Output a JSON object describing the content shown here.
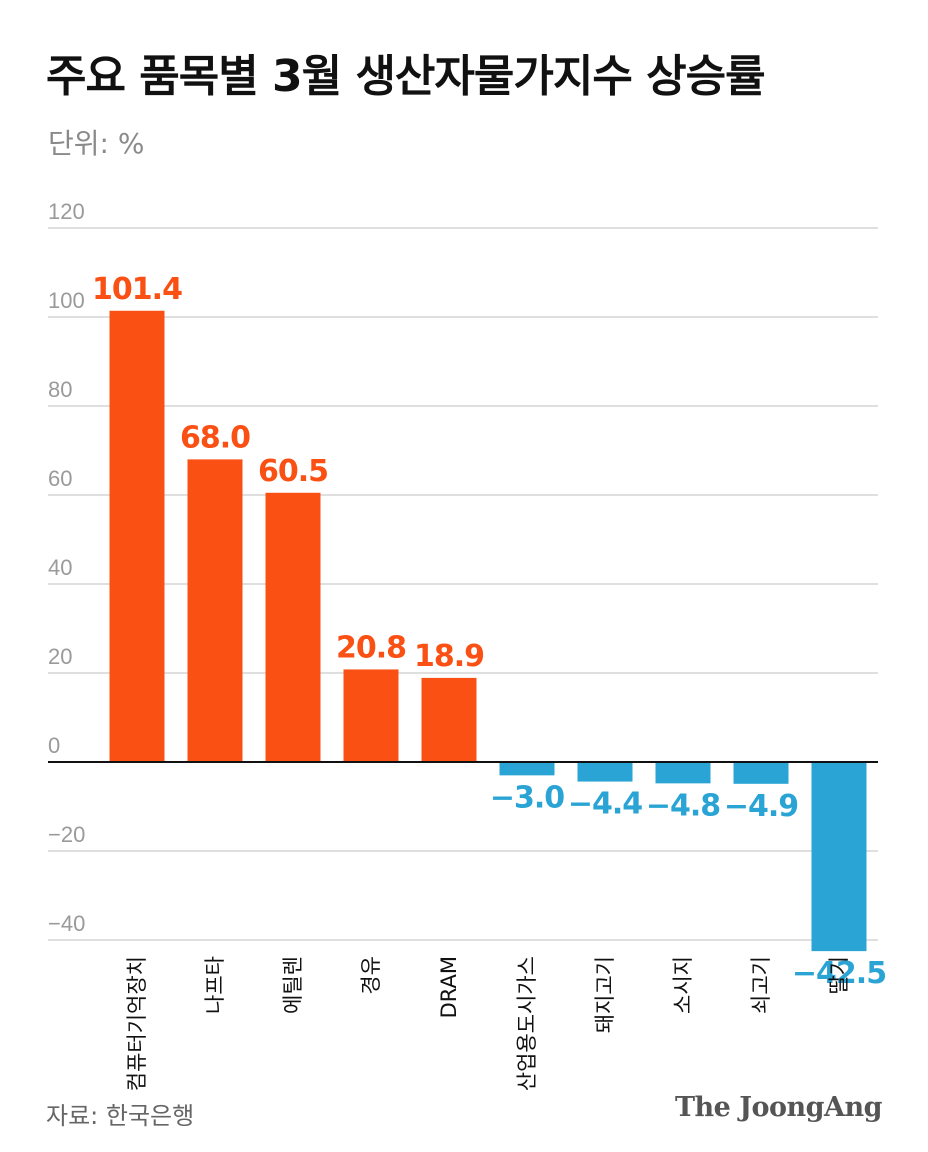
{
  "header": {
    "title": "주요 품목별 3월 생산자물가지수 상승률",
    "unit": "단위: %"
  },
  "footer": {
    "source": "자료: 한국은행",
    "brand": "The JoongAng"
  },
  "colors": {
    "positive": "#fa5014",
    "negative": "#2aa4d5",
    "grid": "#cccccc",
    "zero_line": "#111111"
  },
  "chart_data": {
    "type": "bar",
    "title": "주요 품목별 3월 생산자물가지수 상승률",
    "ylabel": "단위: %",
    "xlabel": "",
    "categories": [
      "컴퓨터기억장치",
      "나프타",
      "에틸렌",
      "경유",
      "DRAM",
      "산업용도시가스",
      "돼지고기",
      "소시지",
      "쇠고기",
      "딸기"
    ],
    "values": [
      101.4,
      68.0,
      60.5,
      20.8,
      18.9,
      -3.0,
      -4.4,
      -4.8,
      -4.9,
      -42.5
    ],
    "value_labels": [
      "101.4",
      "68.0",
      "60.5",
      "20.8",
      "18.9",
      "−3.0",
      "−4.4",
      "−4.8",
      "−4.9",
      "−42.5"
    ],
    "ylim": [
      -40,
      120
    ],
    "yticks": [
      120,
      100,
      80,
      60,
      40,
      20,
      0,
      -20,
      -40
    ],
    "ytick_labels": [
      "120",
      "100",
      "80",
      "60",
      "40",
      "20",
      "0",
      "−20",
      "−40"
    ],
    "grid": true
  }
}
